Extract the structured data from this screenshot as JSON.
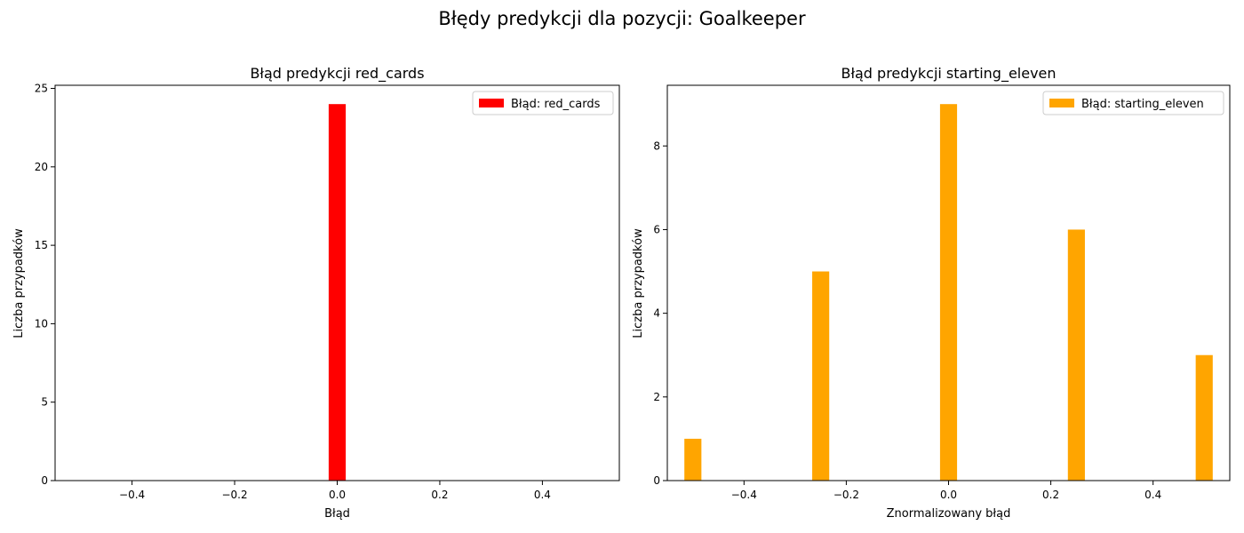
{
  "figure": {
    "suptitle": "Błędy predykcji dla pozycji: Goalkeeper"
  },
  "chart_data": [
    {
      "type": "bar",
      "title": "Błąd predykcji red_cards",
      "xlabel": "Błąd",
      "ylabel": "Liczba przypadków",
      "xlim": [
        -0.55,
        0.55
      ],
      "ylim": [
        0,
        25.2
      ],
      "xticks": [
        -0.4,
        -0.2,
        0.0,
        0.2,
        0.4
      ],
      "xtick_labels": [
        "−0.4",
        "−0.2",
        "0.0",
        "0.2",
        "0.4"
      ],
      "yticks": [
        0,
        5,
        10,
        15,
        20,
        25
      ],
      "ytick_labels": [
        "0",
        "5",
        "10",
        "15",
        "20",
        "25"
      ],
      "bar_width": 0.0333,
      "legend": "top-right",
      "grid": false,
      "series": [
        {
          "name": "Błąd: red_cards",
          "color": "#ff0000",
          "x": [
            0.0
          ],
          "values": [
            24
          ]
        }
      ]
    },
    {
      "type": "bar",
      "title": "Błąd predykcji starting_eleven",
      "xlabel": "Znormalizowany błąd",
      "ylabel": "Liczba przypadków",
      "xlim": [
        -0.55,
        0.55
      ],
      "ylim": [
        0,
        9.45
      ],
      "xticks": [
        -0.4,
        -0.2,
        0.0,
        0.2,
        0.4
      ],
      "xtick_labels": [
        "−0.4",
        "−0.2",
        "0.0",
        "0.2",
        "0.4"
      ],
      "yticks": [
        0,
        2,
        4,
        6,
        8
      ],
      "ytick_labels": [
        "0",
        "2",
        "4",
        "6",
        "8"
      ],
      "bar_width": 0.0333,
      "legend": "top-right",
      "grid": false,
      "series": [
        {
          "name": "Błąd: starting_eleven",
          "color": "#ffa500",
          "x": [
            -0.5,
            -0.25,
            0.0,
            0.25,
            0.5
          ],
          "values": [
            1,
            5,
            9,
            6,
            3
          ]
        }
      ]
    }
  ]
}
